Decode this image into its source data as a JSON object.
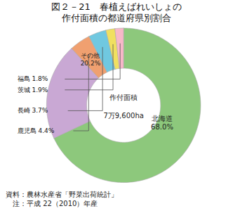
{
  "chart_data": {
    "type": "pie",
    "title": "図２－21　春植えばれいしょの",
    "subtitle": "作付面積の都道府県別割合",
    "categories": [
      "北海道",
      "その他",
      "鹿児島",
      "長崎",
      "茨城",
      "福島"
    ],
    "values": [
      68.0,
      20.2,
      4.4,
      3.7,
      1.9,
      1.8
    ],
    "value_labels": [
      "68.0%",
      "20.2%",
      "4.4%",
      "3.7%",
      "1.9%",
      "1.8%"
    ],
    "colors": [
      "#8dc87c",
      "#c9a8d4",
      "#f0a070",
      "#70c8e0",
      "#f0e060",
      "#f8b8c8"
    ],
    "data_labels": true,
    "annotations": [
      "作付面積",
      "7万9,600ha"
    ],
    "notes": [
      "資料：農林水産省「野菜出荷統計」",
      "　注：平成 22（2010）年産"
    ]
  }
}
